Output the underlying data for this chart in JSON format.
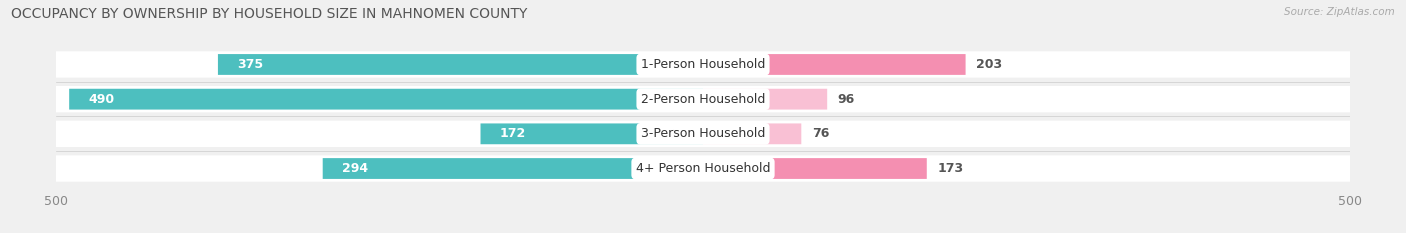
{
  "title": "OCCUPANCY BY OWNERSHIP BY HOUSEHOLD SIZE IN MAHNOMEN COUNTY",
  "source": "Source: ZipAtlas.com",
  "categories": [
    "1-Person Household",
    "2-Person Household",
    "3-Person Household",
    "4+ Person Household"
  ],
  "owner_values": [
    375,
    490,
    172,
    294
  ],
  "renter_values": [
    203,
    96,
    76,
    173
  ],
  "owner_color": "#4dbfbf",
  "renter_color": "#f48fb1",
  "renter_color_light": "#f9c0d4",
  "background_color": "#f0f0f0",
  "bar_background": "#ffffff",
  "axis_max": 500,
  "label_color_owner_inside": "#ffffff",
  "label_color_outside": "#555555",
  "label_fontsize": 9,
  "title_fontsize": 10,
  "category_fontsize": 9,
  "bar_height": 0.6,
  "figsize": [
    14.06,
    2.33
  ],
  "dpi": 100
}
